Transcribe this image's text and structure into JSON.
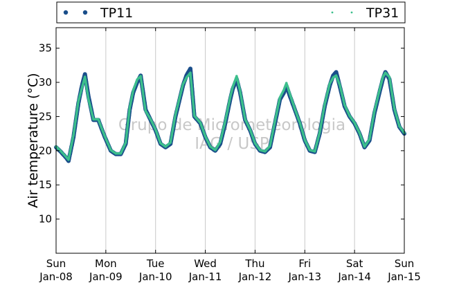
{
  "chart_data": {
    "type": "scatter",
    "ylabel": "Air temperature (°C)",
    "ylim": [
      5,
      38
    ],
    "yticks": [
      10,
      15,
      20,
      25,
      30,
      35
    ],
    "xlim": [
      0,
      7
    ],
    "xticks": [
      {
        "x": 0,
        "day": "Sun",
        "date": "Jan-08"
      },
      {
        "x": 1,
        "day": "Mon",
        "date": "Jan-09"
      },
      {
        "x": 2,
        "day": "Tue",
        "date": "Jan-10"
      },
      {
        "x": 3,
        "day": "Wed",
        "date": "Jan-11"
      },
      {
        "x": 4,
        "day": "Thu",
        "date": "Jan-12"
      },
      {
        "x": 5,
        "day": "Fri",
        "date": "Jan-13"
      },
      {
        "x": 6,
        "day": "Sat",
        "date": "Jan-14"
      },
      {
        "x": 7,
        "day": "Sun",
        "date": "Jan-15"
      }
    ],
    "grid": "vertical",
    "legend_position": "top",
    "watermark": [
      "Grupo de Micrometeorologia",
      "IAG / USP"
    ],
    "series": [
      {
        "name": "TP11",
        "color": "#1a4e8a",
        "marker": "circle",
        "x": [
          0.0,
          0.1,
          0.2,
          0.25,
          0.35,
          0.45,
          0.52,
          0.58,
          0.65,
          0.75,
          0.85,
          0.9,
          0.98,
          1.1,
          1.2,
          1.3,
          1.4,
          1.48,
          1.55,
          1.63,
          1.7,
          1.8,
          1.9,
          2.0,
          2.1,
          2.2,
          2.3,
          2.4,
          2.55,
          2.62,
          2.7,
          2.78,
          2.9,
          3.0,
          3.1,
          3.2,
          3.3,
          3.4,
          3.5,
          3.55,
          3.63,
          3.7,
          3.8,
          3.9,
          4.0,
          4.1,
          4.2,
          4.3,
          4.4,
          4.5,
          4.58,
          4.63,
          4.7,
          4.8,
          4.9,
          5.0,
          5.1,
          5.2,
          5.3,
          5.4,
          5.5,
          5.57,
          5.63,
          5.7,
          5.8,
          5.9,
          6.0,
          6.1,
          6.2,
          6.3,
          6.4,
          6.5,
          6.57,
          6.62,
          6.7,
          6.8,
          6.9,
          7.0
        ],
        "y": [
          20.5,
          19.8,
          19.0,
          18.5,
          22.0,
          27.0,
          29.5,
          31.2,
          28.0,
          24.5,
          24.5,
          23.5,
          22.0,
          20.0,
          19.5,
          19.5,
          21.0,
          26.0,
          28.5,
          30.0,
          31.0,
          26.0,
          24.5,
          23.0,
          21.0,
          20.5,
          21.0,
          25.0,
          29.5,
          31.0,
          32.0,
          25.0,
          24.0,
          22.0,
          20.5,
          20.0,
          21.0,
          24.0,
          27.5,
          29.0,
          30.5,
          28.5,
          24.5,
          23.0,
          21.0,
          20.0,
          19.8,
          20.5,
          24.0,
          27.5,
          28.5,
          29.5,
          28.0,
          26.0,
          24.0,
          21.5,
          20.0,
          19.8,
          22.5,
          26.5,
          29.5,
          31.0,
          31.5,
          29.5,
          26.5,
          25.0,
          24.0,
          22.5,
          20.5,
          21.5,
          25.5,
          28.5,
          30.5,
          31.5,
          30.5,
          26.0,
          23.5,
          22.5
        ]
      },
      {
        "name": "TP31",
        "color": "#3cbf8c",
        "marker": "point",
        "x": [
          0.0,
          0.1,
          0.2,
          0.25,
          0.35,
          0.45,
          0.52,
          0.58,
          0.65,
          0.75,
          0.85,
          0.9,
          0.98,
          1.1,
          1.2,
          1.3,
          1.4,
          1.48,
          1.55,
          1.63,
          1.7,
          1.8,
          1.9,
          2.0,
          2.1,
          2.2,
          2.3,
          2.4,
          2.55,
          2.62,
          2.7,
          2.78,
          2.9,
          3.0,
          3.1,
          3.2,
          3.3,
          3.4,
          3.5,
          3.55,
          3.63,
          3.7,
          3.8,
          3.9,
          4.0,
          4.1,
          4.2,
          4.3,
          4.4,
          4.5,
          4.58,
          4.63,
          4.7,
          4.8,
          4.9,
          5.0,
          5.1,
          5.2,
          5.3,
          5.4,
          5.5,
          5.57,
          5.63,
          5.7,
          5.8,
          5.9,
          6.0,
          6.1,
          6.2,
          6.3,
          6.4,
          6.5,
          6.57,
          6.62,
          6.7,
          6.8,
          6.9,
          7.0
        ],
        "y": [
          20.6,
          19.9,
          19.1,
          18.7,
          22.3,
          27.3,
          29.2,
          30.8,
          27.6,
          24.6,
          24.6,
          23.6,
          22.1,
          20.1,
          19.6,
          19.6,
          21.2,
          26.3,
          28.8,
          30.4,
          30.9,
          25.8,
          24.6,
          23.1,
          21.1,
          20.6,
          21.2,
          25.3,
          29.7,
          30.7,
          31.4,
          25.1,
          24.1,
          22.1,
          20.6,
          20.1,
          21.3,
          24.3,
          27.8,
          29.3,
          30.9,
          28.7,
          24.6,
          23.1,
          21.1,
          20.1,
          19.9,
          20.7,
          24.3,
          27.8,
          28.9,
          29.9,
          28.3,
          26.1,
          24.1,
          21.6,
          20.1,
          19.9,
          22.7,
          26.8,
          29.8,
          30.7,
          31.0,
          29.7,
          26.7,
          25.1,
          24.1,
          22.6,
          20.6,
          21.7,
          25.8,
          28.8,
          30.8,
          31.4,
          30.8,
          26.2,
          23.6,
          22.6
        ]
      }
    ]
  }
}
